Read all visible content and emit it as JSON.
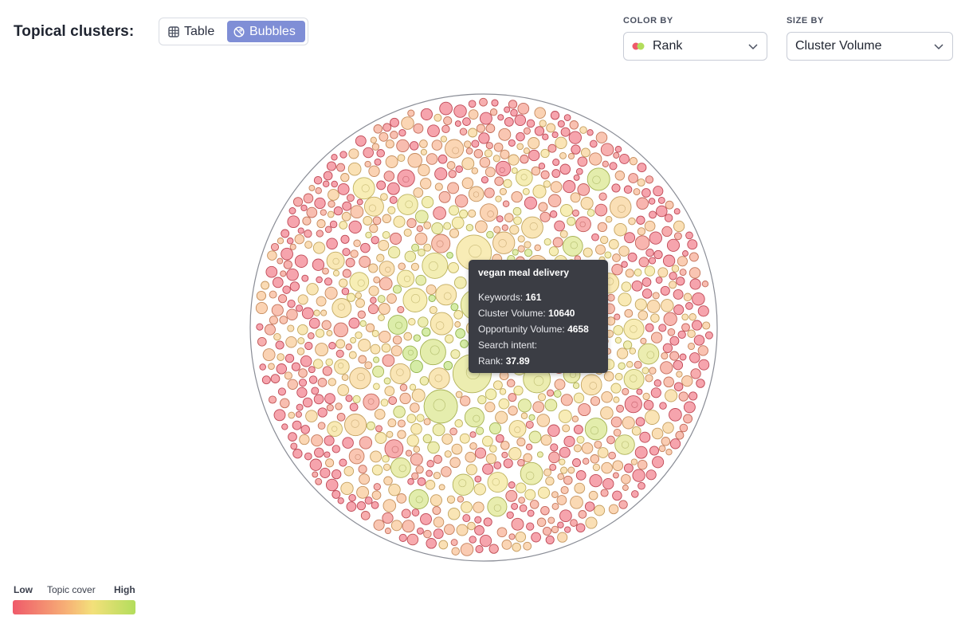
{
  "header": {
    "title": "Topical clusters:",
    "view_toggle": {
      "table_label": "Table",
      "bubbles_label": "Bubbles",
      "active": "Bubbles"
    }
  },
  "controls": {
    "color_by": {
      "label": "COLOR BY",
      "value": "Rank"
    },
    "size_by": {
      "label": "SIZE BY",
      "value": "Cluster Volume"
    }
  },
  "tooltip": {
    "title": "vegan meal delivery",
    "keywords_label": "Keywords:",
    "keywords_value": "161",
    "cluster_volume_label": "Cluster Volume:",
    "cluster_volume_value": "10640",
    "opportunity_volume_label": "Opportunity Volume:",
    "opportunity_volume_value": "4658",
    "search_intent_label": "Search intent:",
    "rank_label": "Rank:",
    "rank_value": "37.89"
  },
  "legend": {
    "low": "Low",
    "middle": "Topic cover",
    "high": "High"
  },
  "colors": {
    "accent": "#7f8ed6",
    "low": "#ef5a6a",
    "mid_low": "#f7b376",
    "mid_high": "#f3e07a",
    "high": "#b3dd5c",
    "tooltip_bg": "#3b3d44"
  }
}
